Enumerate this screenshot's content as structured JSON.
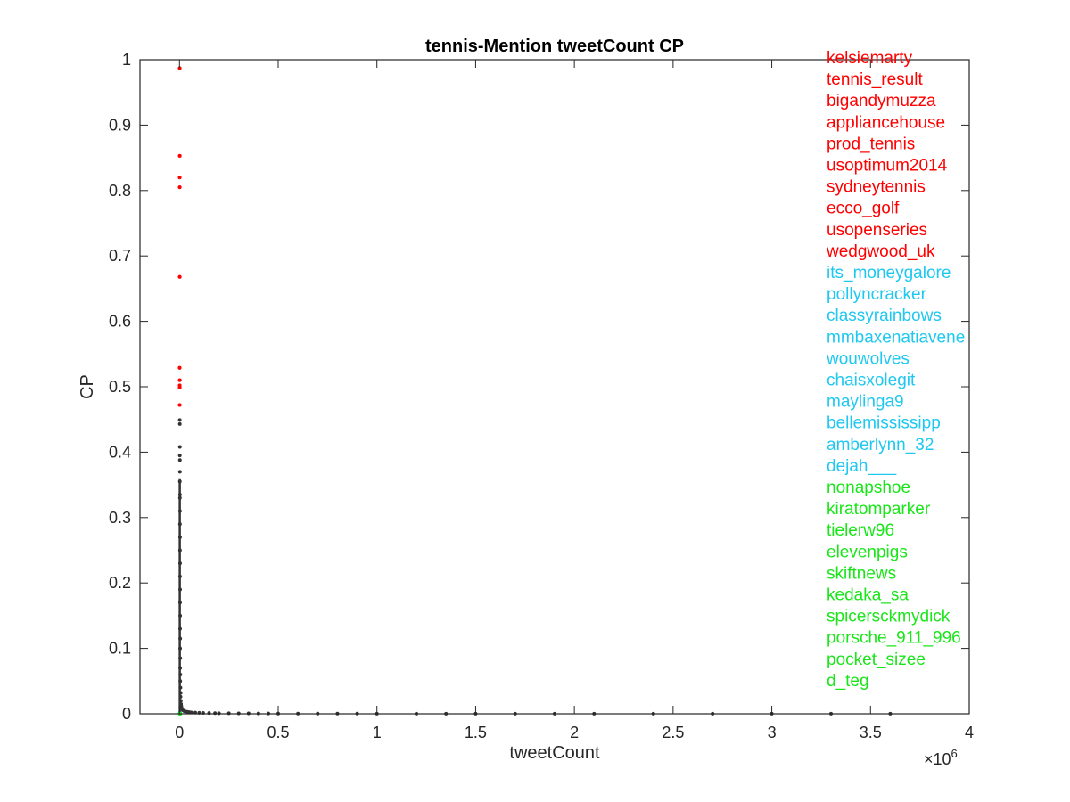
{
  "chart_data": {
    "type": "scatter",
    "title": "tennis-Mention tweetCount CP",
    "xlabel": "tweetCount",
    "ylabel": "CP",
    "x_exponent_label": "×10",
    "x_exponent_power": "6",
    "xlim": [
      -200000,
      4000000
    ],
    "ylim": [
      0,
      1
    ],
    "xticks": [
      0,
      500000,
      1000000,
      1500000,
      2000000,
      2500000,
      3000000,
      3500000,
      4000000
    ],
    "xtick_labels": [
      "0",
      "0.5",
      "1",
      "1.5",
      "2",
      "2.5",
      "3",
      "3.5",
      "4"
    ],
    "yticks": [
      0,
      0.1,
      0.2,
      0.3,
      0.4,
      0.5,
      0.6,
      0.7,
      0.8,
      0.9,
      1
    ],
    "ytick_labels": [
      "0",
      "0.1",
      "0.2",
      "0.3",
      "0.4",
      "0.5",
      "0.6",
      "0.7",
      "0.8",
      "0.9",
      "1"
    ],
    "grid": false,
    "colors": {
      "red": "#ff0000",
      "cyan": "#1ec8f0",
      "green": "#19e619",
      "dark": "#333333",
      "axis": "#262626"
    },
    "series": [
      {
        "color": "#ff0000",
        "points": [
          [
            1200,
            0.987
          ],
          [
            1500,
            0.853
          ],
          [
            1100,
            0.82
          ],
          [
            1300,
            0.805
          ],
          [
            1400,
            0.668
          ],
          [
            1000,
            0.529
          ],
          [
            1600,
            0.51
          ],
          [
            1200,
            0.502
          ],
          [
            1300,
            0.499
          ],
          [
            1100,
            0.472
          ]
        ]
      },
      {
        "color": "#1ec8f0",
        "points": [
          [
            2000,
            0.0015
          ],
          [
            3000,
            0.0015
          ],
          [
            2500,
            0.001
          ],
          [
            1500,
            0.001
          ],
          [
            3500,
            0.0012
          ],
          [
            4000,
            0.001
          ],
          [
            1800,
            0.0008
          ],
          [
            2200,
            0.0009
          ],
          [
            2700,
            0.0011
          ],
          [
            3200,
            0.0007
          ]
        ]
      },
      {
        "color": "#19e619",
        "points": [
          [
            2000,
            0.0004
          ],
          [
            3000,
            0.0004
          ],
          [
            2500,
            0.0003
          ],
          [
            1500,
            0.0003
          ],
          [
            3500,
            0.0003
          ],
          [
            4000,
            0.0002
          ],
          [
            1800,
            0.0002
          ],
          [
            2200,
            0.0003
          ],
          [
            2700,
            0.0002
          ],
          [
            3200,
            0.0002
          ]
        ]
      },
      {
        "color": "#333333",
        "points": [
          [
            1500,
            0.449
          ],
          [
            1800,
            0.443
          ],
          [
            2000,
            0.408
          ],
          [
            1700,
            0.395
          ],
          [
            2100,
            0.388
          ],
          [
            2300,
            0.37
          ],
          [
            1900,
            0.355
          ],
          [
            2500,
            0.335
          ],
          [
            2200,
            0.33
          ],
          [
            2600,
            0.31
          ],
          [
            2400,
            0.29
          ],
          [
            2800,
            0.27
          ],
          [
            2500,
            0.25
          ],
          [
            3000,
            0.23
          ],
          [
            2700,
            0.21
          ],
          [
            3200,
            0.19
          ],
          [
            2900,
            0.17
          ],
          [
            3400,
            0.15
          ],
          [
            3100,
            0.13
          ],
          [
            3600,
            0.115
          ],
          [
            3300,
            0.1
          ],
          [
            3900,
            0.085
          ],
          [
            3500,
            0.07
          ],
          [
            4500,
            0.06
          ],
          [
            4000,
            0.05
          ],
          [
            5000,
            0.04
          ],
          [
            6000,
            0.032
          ],
          [
            5500,
            0.026
          ],
          [
            7000,
            0.02
          ],
          [
            8000,
            0.015
          ],
          [
            9000,
            0.012
          ],
          [
            10000,
            0.01
          ],
          [
            12000,
            0.008
          ],
          [
            15000,
            0.006
          ],
          [
            20000,
            0.005
          ],
          [
            25000,
            0.004
          ],
          [
            30000,
            0.0035
          ],
          [
            40000,
            0.003
          ],
          [
            50000,
            0.0025
          ],
          [
            60000,
            0.002
          ],
          [
            80000,
            0.0018
          ],
          [
            100000,
            0.0015
          ],
          [
            120000,
            0.0013
          ],
          [
            150000,
            0.0012
          ],
          [
            180000,
            0.001
          ],
          [
            200000,
            0.0009
          ],
          [
            250000,
            0.0008
          ],
          [
            300000,
            0.0007
          ],
          [
            350000,
            0.0006
          ],
          [
            400000,
            0.0005
          ],
          [
            450000,
            0.0005
          ],
          [
            500000,
            0.0004
          ],
          [
            600000,
            0.0004
          ],
          [
            700000,
            0.0003
          ],
          [
            800000,
            0.0003
          ],
          [
            900000,
            0.0003
          ],
          [
            1000000,
            0.0002
          ],
          [
            1200000,
            0.0002
          ],
          [
            1350000,
            0.0002
          ],
          [
            1500000,
            0.0002
          ],
          [
            1700000,
            0.0002
          ],
          [
            1900000,
            0.0001
          ],
          [
            2100000,
            0.0001
          ],
          [
            2400000,
            0.0001
          ],
          [
            2700000,
            0.0001
          ],
          [
            3000000,
            0.0001
          ],
          [
            3300000,
            0.0001
          ],
          [
            3600000,
            0.0001
          ]
        ]
      }
    ],
    "labels": [
      {
        "text": "kelsiemarty",
        "color": "#ff0000"
      },
      {
        "text": "tennis_result",
        "color": "#ff0000"
      },
      {
        "text": "bigandymuzza",
        "color": "#ff0000"
      },
      {
        "text": "appliancehouse",
        "color": "#ff0000"
      },
      {
        "text": "prod_tennis",
        "color": "#ff0000"
      },
      {
        "text": "usoptimum2014",
        "color": "#ff0000"
      },
      {
        "text": "sydneytennis",
        "color": "#ff0000"
      },
      {
        "text": "ecco_golf",
        "color": "#ff0000"
      },
      {
        "text": "usopenseries",
        "color": "#ff0000"
      },
      {
        "text": "wedgwood_uk",
        "color": "#ff0000"
      },
      {
        "text": "its_moneygalore",
        "color": "#1ec8f0"
      },
      {
        "text": "pollyncracker",
        "color": "#1ec8f0"
      },
      {
        "text": "classyrainbows",
        "color": "#1ec8f0"
      },
      {
        "text": "mmbaxenatiavene",
        "color": "#1ec8f0"
      },
      {
        "text": "wouwolves",
        "color": "#1ec8f0"
      },
      {
        "text": "chaisxolegit",
        "color": "#1ec8f0"
      },
      {
        "text": "maylinga9",
        "color": "#1ec8f0"
      },
      {
        "text": "bellemississipp",
        "color": "#1ec8f0"
      },
      {
        "text": "amberlynn_32",
        "color": "#1ec8f0"
      },
      {
        "text": "dejah___",
        "color": "#1ec8f0"
      },
      {
        "text": "nonapshoe",
        "color": "#19e619"
      },
      {
        "text": "kiratomparker",
        "color": "#19e619"
      },
      {
        "text": "tielerw96",
        "color": "#19e619"
      },
      {
        "text": "elevenpigs",
        "color": "#19e619"
      },
      {
        "text": "skiftnews",
        "color": "#19e619"
      },
      {
        "text": "kedaka_sa",
        "color": "#19e619"
      },
      {
        "text": "spicersckmydick",
        "color": "#19e619"
      },
      {
        "text": "porsche_911_996",
        "color": "#19e619"
      },
      {
        "text": "pocket_sizee",
        "color": "#19e619"
      },
      {
        "text": "d_teg",
        "color": "#19e619"
      }
    ]
  }
}
